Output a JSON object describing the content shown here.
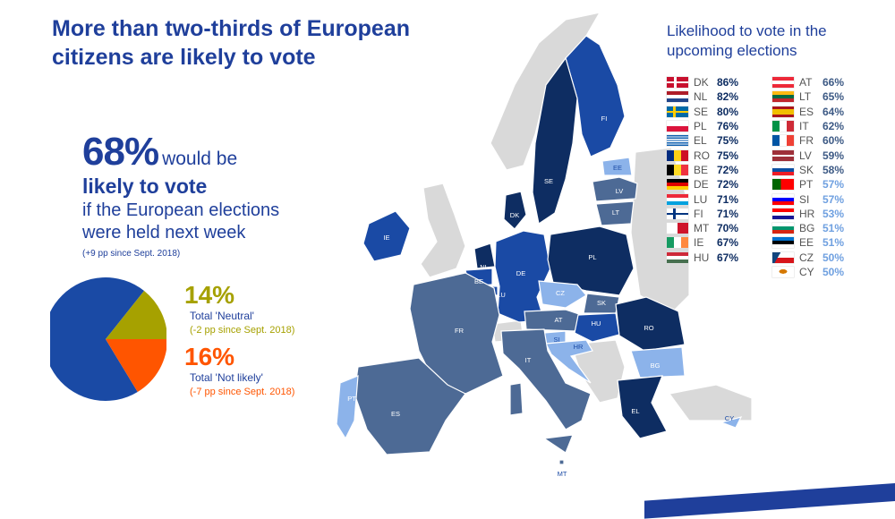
{
  "title": "More than two-thirds of European citizens are likely to vote",
  "headline": {
    "percent": "68%",
    "would": "would be",
    "likely": "likely to vote",
    "line1": "if the European elections",
    "line2": "were held next week",
    "change": "(+9 pp since Sept. 2018)"
  },
  "pie": {
    "likely": 68,
    "neutral": 14,
    "not_likely": 16,
    "colors": {
      "likely": "#1a4aa5",
      "neutral": "#a6a100",
      "not_likely": "#ff5500"
    }
  },
  "neutral": {
    "pct": "14%",
    "label": "Total 'Neutral'",
    "change": "(-2 pp since Sept. 2018)"
  },
  "not_likely": {
    "pct": "16%",
    "label": "Total 'Not likely'",
    "change": "(-7 pp since Sept. 2018)"
  },
  "legend": {
    "title": "Likelihood to vote in the upcoming elections",
    "left": [
      {
        "code": "DK",
        "value": "86%",
        "flag": "dk"
      },
      {
        "code": "NL",
        "value": "82%",
        "flag": "nl"
      },
      {
        "code": "SE",
        "value": "80%",
        "flag": "se"
      },
      {
        "code": "PL",
        "value": "76%",
        "flag": "pl"
      },
      {
        "code": "EL",
        "value": "75%",
        "flag": "el"
      },
      {
        "code": "RO",
        "value": "75%",
        "flag": "ro"
      },
      {
        "code": "BE",
        "value": "72%",
        "flag": "be"
      },
      {
        "code": "DE",
        "value": "72%",
        "flag": "de"
      },
      {
        "code": "LU",
        "value": "71%",
        "flag": "lu"
      },
      {
        "code": "FI",
        "value": "71%",
        "flag": "fi"
      },
      {
        "code": "MT",
        "value": "70%",
        "flag": "mt"
      },
      {
        "code": "IE",
        "value": "67%",
        "flag": "ie"
      },
      {
        "code": "HU",
        "value": "67%",
        "flag": "hu"
      }
    ],
    "right": [
      {
        "code": "AT",
        "value": "66%",
        "flag": "at"
      },
      {
        "code": "LT",
        "value": "65%",
        "flag": "lt"
      },
      {
        "code": "ES",
        "value": "64%",
        "flag": "es"
      },
      {
        "code": "IT",
        "value": "62%",
        "flag": "it"
      },
      {
        "code": "FR",
        "value": "60%",
        "flag": "fr"
      },
      {
        "code": "LV",
        "value": "59%",
        "flag": "lv"
      },
      {
        "code": "SK",
        "value": "58%",
        "flag": "sk"
      },
      {
        "code": "PT",
        "value": "57%",
        "flag": "pt"
      },
      {
        "code": "SI",
        "value": "57%",
        "flag": "si"
      },
      {
        "code": "HR",
        "value": "53%",
        "flag": "hr"
      },
      {
        "code": "BG",
        "value": "51%",
        "flag": "bg"
      },
      {
        "code": "EE",
        "value": "51%",
        "flag": "ee"
      },
      {
        "code": "CZ",
        "value": "50%",
        "flag": "cz"
      },
      {
        "code": "CY",
        "value": "50%",
        "flag": "cy"
      }
    ]
  },
  "map_labels": {
    "FI": "FI",
    "SE": "SE",
    "EE": "EE",
    "LV": "LV",
    "LT": "LT",
    "DK": "DK",
    "IE": "IE",
    "NL": "NL",
    "BE": "BE",
    "LU": "LU",
    "DE": "DE",
    "PL": "PL",
    "CZ": "CZ",
    "SK": "SK",
    "AT": "AT",
    "HU": "HU",
    "RO": "RO",
    "FR": "FR",
    "SI": "SI",
    "HR": "HR",
    "BG": "BG",
    "IT": "IT",
    "PT": "PT",
    "ES": "ES",
    "EL": "EL",
    "CY": "CY",
    "MT": "MT"
  },
  "colors": {
    "dark": "#0e2d62",
    "mid": "#1a4aa5",
    "steel": "#4d6a95",
    "light": "#8cb3ea",
    "grey": "#d9d9d9",
    "accent": "#1f3f9b"
  }
}
